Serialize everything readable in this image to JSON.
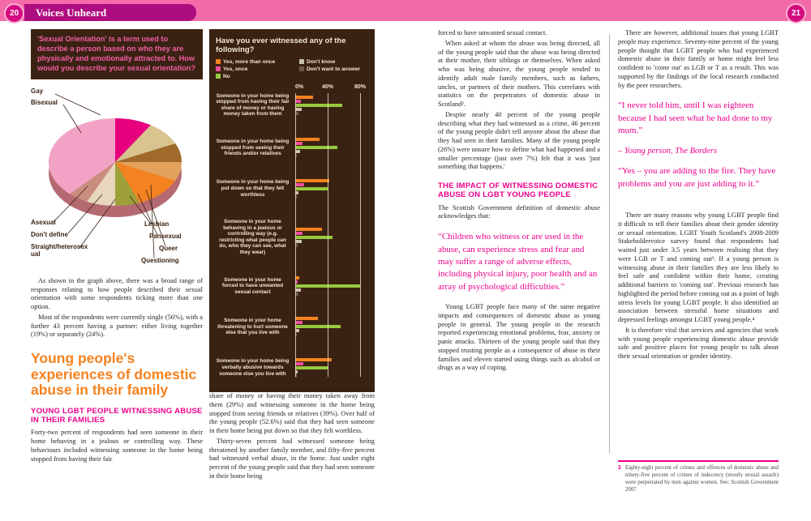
{
  "header": {
    "title": "Voices Unheard",
    "page_left": "20",
    "page_right": "21"
  },
  "colors": {
    "accent_pink": "#ec008c",
    "accent_orange": "#f58220",
    "panel_brown": "#3a2213",
    "strip_pink": "#f46ba9"
  },
  "chart_data": [
    {
      "type": "pie",
      "title": "How would you describe your sexual orientation?",
      "labels": [
        "Gay",
        "Questioning",
        "Queer",
        "Pansexual",
        "Lesbian",
        "Straight/heterosexual",
        "Don't define",
        "Asexual",
        "Bisexual"
      ],
      "values": [
        9,
        9,
        7,
        7,
        12,
        6,
        7,
        5,
        38
      ],
      "colors": [
        "#e6007e",
        "#d9c48f",
        "#a06b2a",
        "#e3a25c",
        "#f58220",
        "#9ea13b",
        "#e8d6bd",
        "#c98d7e",
        "#f2a3c5"
      ],
      "legend_position": "around",
      "style": "3d-ellipse"
    },
    {
      "type": "bar",
      "orientation": "horizontal",
      "title": "Have you ever witnessed any of the following?",
      "series": [
        "Yes, more than once",
        "Yes, once",
        "No",
        "Don't know",
        "Don't want to answer"
      ],
      "series_colors": [
        "#f58220",
        "#ef4d9e",
        "#97c93d",
        "#cbbfae",
        "#6b5948"
      ],
      "x_ticks": [
        "0%",
        "40%",
        "80%"
      ],
      "xlim": [
        0,
        84
      ],
      "grid": true,
      "categories": [
        "Someone in your home being stopped from having their fair share of money or having money taken from them",
        "Someone in your home being stopped from seeing their friends and/or relatives",
        "Someone in your home being put down so that they felt worthless",
        "Someone in your home behaving in a jealous or controlling way (e.g. restricting what people can do, who they can see, what they wear)",
        "Someone in your home forced to have unwanted sexual contact",
        "Someone in your home threatening to hurt someone else that you live with",
        "Someone in your home being verbally abusive towards someone else you live with"
      ],
      "values": [
        [
          22,
          7,
          58,
          8,
          4
        ],
        [
          30,
          9,
          52,
          6,
          2
        ],
        [
          42,
          11,
          40,
          4,
          2
        ],
        [
          33,
          9,
          46,
          8,
          3
        ],
        [
          5,
          3,
          80,
          7,
          4
        ],
        [
          28,
          9,
          56,
          5,
          2
        ],
        [
          45,
          10,
          40,
          3,
          2
        ]
      ]
    }
  ],
  "col1": {
    "question": "'Sexual Orientation' is a term used to describe a person based on who they are physically and emotionally attracted to. How would you describe your sexual orientation?",
    "para1": "As shown in the graph above, there was a broad range of responses relating to how people described their sexual orientation with some respondents ticking more than one option.",
    "para2": "Most of the respondents were currently single (56%), with a further 43 percent having a partner: either living together (19%) or separately (24%).",
    "heading_orange": "Young people's experiences of domestic abuse in their family",
    "heading_pink": "YOUNG LGBT PEOPLE WITNESSING ABUSE IN THEIR FAMILIES",
    "para3": "Forty-two percent of respondents had seen someone in their home behaving in a jealous or controlling way. These behaviours included witnessing someone in the home being stopped from having their fair"
  },
  "col2": {
    "para1": "share of money or having their money taken away from them (29%) and witnessing someone in the home being stopped from seeing friends or relatives (39%). Over half of the young people (52.6%) said that they had seen someone in their home being put down so that they felt worthless.",
    "para2": "Thirty-seven percent had witnessed someone being threatened by another family member, and fifty-five percent had witnessed verbal abuse, in the home. Just under eight percent of the young people said that they had seen someone in their home being"
  },
  "col3": {
    "para1": "forced to have unwanted sexual contact.",
    "para2": "When asked at whom the abuse was being directed, all of the young people said that the abuse was being directed at their mother, their siblings or themselves. When asked who was being abusive, the young people tended to identify adult male family members, such as fathers, uncles, or partners of their mothers. This correlates with statistics on the perpetrators of domestic abuse in Scotland².",
    "para3": "Despite nearly 40 percent of the young people describing what they had witnessed as a crime, 46 percent of the young people didn't tell anyone about the abuse that they had seen in their families. Many of the young people (26%) were unsure how to define what had happened and a smaller percentage (just over 7%) felt that it was 'just something that happens.'",
    "heading_pink": "THE IMPACT OF WITNESSING DOMESTIC ABUSE ON LGBT YOUNG PEOPLE",
    "para4": "The Scottish Government definition of domestic abuse acknowledges that:",
    "quote": "“Children who witness or are used in the abuse, can experience stress and fear and may suffer a range of adverse effects, including physical injury, poor health and an array of psychological difficulties.”",
    "para5": "Young LGBT people face many of the same negative impacts and consequences of domestic abuse as young people in general. The young people in the research reported experiencing emotional problems, fear, anxiety or panic attacks. Thirteen of the young people said that they stopped trusting people as a consequence of abuse in their families and eleven started using things such as alcohol or drugs as a way of coping."
  },
  "col4": {
    "para1": "There are however, additional issues that young LGBT people may experience. Seventy-nine percent of the young people thought that LGBT people who had experienced domestic abuse in their family or home might feel less confident to 'come out' as LGB or T as a result. This was supported by the findings of the local research conducted by the peer researchers.",
    "quote1": "“I never told him, until I was eighteen because I had seen what he had done to my mum.”",
    "quote1_attrib": "– Young person, The Borders",
    "quote2": "“Yes – you are adding to the fire. They have problems and you are just adding to it.”",
    "para2": "There are many reasons why young LGBT people find it difficult to tell their families about their gender identity or sexual orientation. LGBT Youth Scotland's 2008-2009 Stakeholdervoice survey found that respondents had waited just under 3.5 years between realising that they were LGB or T and coming out³. If a young person is witnessing abuse in their families they are less likely to feel safe and confident within their home, creating additional barriers to 'coming out'. Previous research has highlighted the period before coming out as a point of high stress levels for young LGBT people. It also identified an association between stressful home situations and depressed feelings amongst LGBT young people.⁴",
    "para3": "It is therefore vital that services and agencies that work with young people experiencing domestic abuse provide safe and positive places for young people to talk about their sexual orientation or gender identity.",
    "footnote_num": "2",
    "footnote": "Eighty-eight percent of crimes and offences of domestic abuse and ninety-five percent of crimes of indecency (mostly sexual assault) were perpetrated by men against women. See: Scottish Government 2007"
  }
}
